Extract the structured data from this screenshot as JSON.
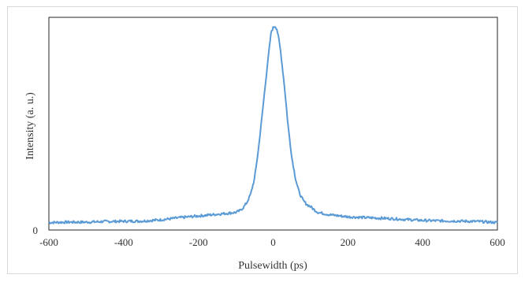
{
  "chart_data": {
    "type": "line",
    "title": "",
    "xlabel": "Pulsewidth (ps)",
    "ylabel": "Intensity (a. u.)",
    "xlim": [
      -600,
      600
    ],
    "ylim": [
      0,
      1
    ],
    "x_ticks": [
      "-600",
      "-400",
      "-200",
      "0",
      "200",
      "400",
      "600"
    ],
    "y_ticks": [
      "0"
    ],
    "grid": false,
    "legend": "none",
    "series": [
      {
        "color": "#5b9bd5",
        "x": [
          -600,
          -550,
          -500,
          -450,
          -400,
          -350,
          -300,
          -250,
          -200,
          -150,
          -120,
          -100,
          -90,
          -80,
          -70,
          -60,
          -50,
          -40,
          -30,
          -20,
          -10,
          -5,
          0,
          5,
          10,
          15,
          20,
          30,
          40,
          50,
          60,
          70,
          80,
          90,
          100,
          110,
          120,
          150,
          200,
          250,
          300,
          350,
          400,
          450,
          500,
          550,
          600
        ],
        "y": [
          0.035,
          0.037,
          0.037,
          0.04,
          0.041,
          0.042,
          0.048,
          0.058,
          0.066,
          0.074,
          0.079,
          0.083,
          0.09,
          0.105,
          0.13,
          0.17,
          0.24,
          0.37,
          0.53,
          0.7,
          0.86,
          0.935,
          0.95,
          0.96,
          0.945,
          0.9,
          0.84,
          0.68,
          0.49,
          0.34,
          0.24,
          0.175,
          0.14,
          0.12,
          0.11,
          0.095,
          0.083,
          0.072,
          0.062,
          0.058,
          0.055,
          0.05,
          0.045,
          0.043,
          0.042,
          0.04,
          0.035
        ]
      }
    ]
  }
}
